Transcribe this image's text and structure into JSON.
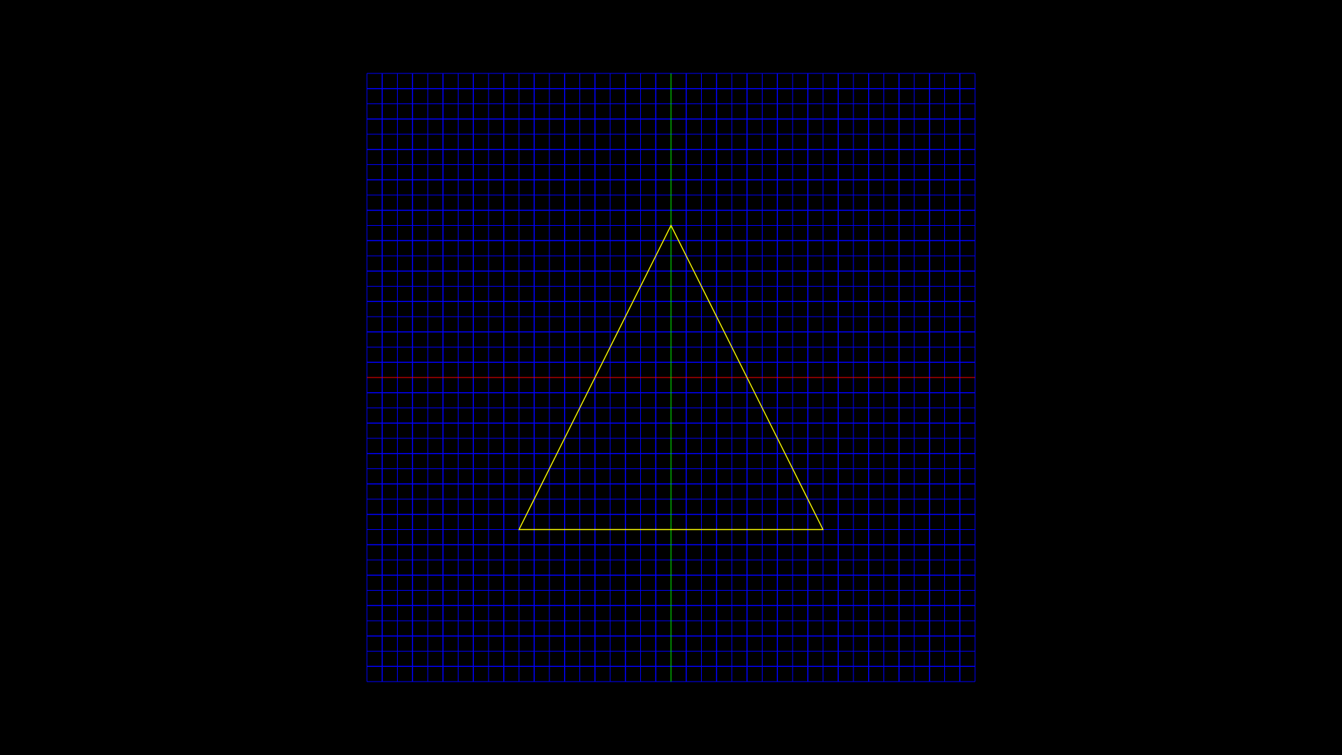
{
  "scene": {
    "grid": {
      "divisions": 40,
      "extent": [
        -1,
        1
      ],
      "color": "#0000ff"
    },
    "axes": {
      "x_axis_color": "#ff0000",
      "y_axis_color": "#00ff00"
    },
    "triangle": {
      "vertices": [
        [
          0,
          0.5
        ],
        [
          -0.5,
          -0.5
        ],
        [
          0.5,
          -0.5
        ]
      ],
      "color": "#ffff00"
    },
    "background": "#000000"
  }
}
